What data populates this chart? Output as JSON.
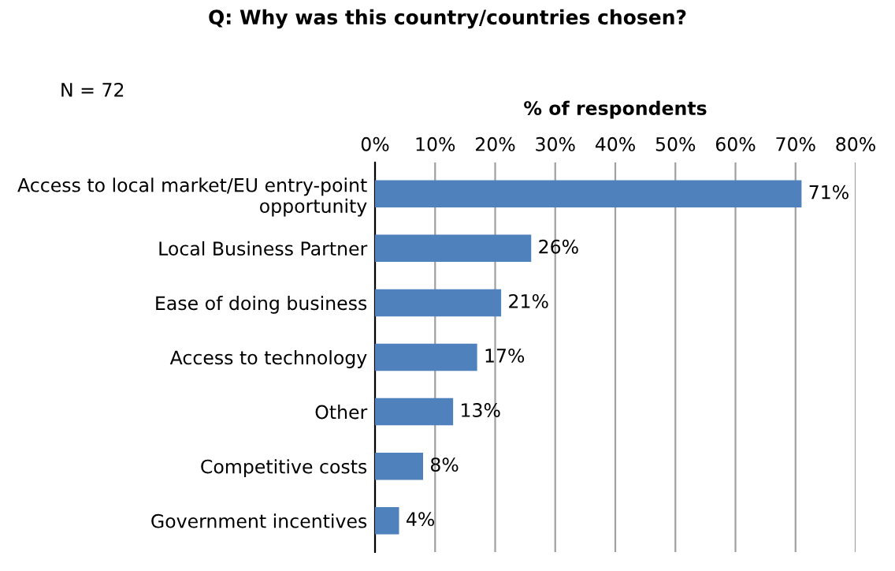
{
  "chart_data": {
    "type": "bar",
    "orientation": "horizontal",
    "title": "Q: Why was this country/countries chosen?",
    "xlabel": "% of respondents",
    "annotations": [
      "N = 72"
    ],
    "categories": [
      "Access to local market/EU entry-point\nopportunity",
      "Local Business Partner",
      "Ease of doing business",
      "Access to technology",
      "Other",
      "Competitive costs",
      "Government incentives"
    ],
    "values": [
      71,
      26,
      21,
      17,
      13,
      8,
      4
    ],
    "value_labels": [
      "71%",
      "26%",
      "21%",
      "17%",
      "13%",
      "8%",
      "4%"
    ],
    "color": "#4f81bd",
    "xlim": [
      0,
      80
    ],
    "xticks": [
      {
        "value": 0,
        "label": "0%"
      },
      {
        "value": 10,
        "label": "10%"
      },
      {
        "value": 20,
        "label": "20%"
      },
      {
        "value": 30,
        "label": "30%"
      },
      {
        "value": 40,
        "label": "40%"
      },
      {
        "value": 50,
        "label": "50%"
      },
      {
        "value": 60,
        "label": "60%"
      },
      {
        "value": 70,
        "label": "70%"
      },
      {
        "value": 80,
        "label": "80%"
      }
    ],
    "grid": "x",
    "legend": false
  }
}
